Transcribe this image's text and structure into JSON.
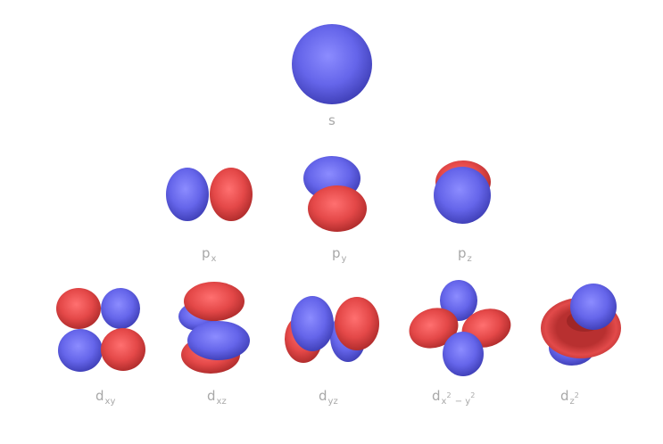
{
  "colors": {
    "blue_lobe": "#6464e8",
    "red_lobe": "#e04848",
    "label": "#a8a8a8",
    "background": "#ffffff"
  },
  "orbitals": {
    "s": {
      "label_main": "s",
      "label_sub": ""
    },
    "px": {
      "label_main": "p",
      "label_sub": "x"
    },
    "py": {
      "label_main": "p",
      "label_sub": "y"
    },
    "pz": {
      "label_main": "p",
      "label_sub": "z"
    },
    "dxy": {
      "label_main": "d",
      "label_sub": "xy"
    },
    "dxz": {
      "label_main": "d",
      "label_sub": "xz"
    },
    "dyz": {
      "label_main": "d",
      "label_sub": "yz"
    },
    "dx2y2": {
      "label_main": "d",
      "sub_x": "x",
      "sup_1": "2",
      "sub_mid": " − y",
      "sup_2": "2"
    },
    "dz2": {
      "label_main": "d",
      "sub_z": "z",
      "sup": "2"
    }
  }
}
